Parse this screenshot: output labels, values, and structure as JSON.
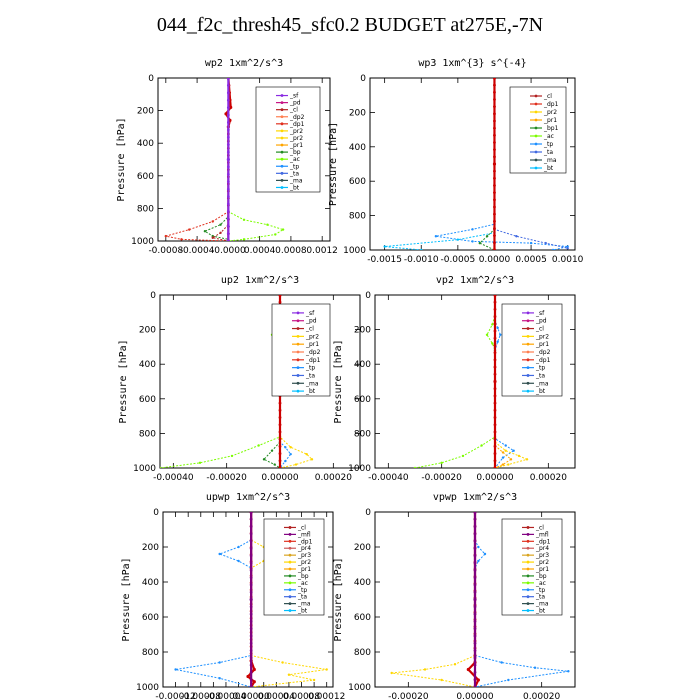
{
  "title": "044_f2c_thresh45_sfc0.2  BUDGET at275E,-7N",
  "colors": {
    "sf": "#8a2be2",
    "pd": "#c71585",
    "cl": "#b22222",
    "dp1": "#e0301e",
    "dp2": "#ff7f50",
    "pr1": "#ffa500",
    "pr2": "#ffd700",
    "pr3": "#daa520",
    "pr4": "#cd5c5c",
    "bp": "#228b22",
    "ac": "#7cfc00",
    "tp": "#1e90ff",
    "ta": "#4169e1",
    "ma": "#2f4f4f",
    "bt": "#00bfff",
    "mfl": "#800080",
    "main": "#cc0000",
    "axis": "#000000"
  },
  "chart_data": [
    {
      "type": "line",
      "title": "wp2  1xm^2/s^3",
      "ylabel": "Pressure [hPa]",
      "xlim": [
        -0.0009,
        0.0013
      ],
      "ylim": [
        1000,
        0
      ],
      "xticks": [
        -0.0008,
        -0.0004,
        0.0,
        0.0004,
        0.0008,
        0.0012
      ],
      "xtick_labels": [
        "-0.0008",
        "-0.0004",
        "-0.0000",
        "0.0004",
        "0.0008",
        "0.0012"
      ],
      "yticks": [
        0,
        200,
        400,
        600,
        800,
        1000
      ],
      "legend": [
        "_sf",
        "_pd",
        "_cl",
        "_dp2",
        "_dp1",
        "_pr2",
        "_pr2",
        "_pr1",
        "_bp",
        "_ac",
        "_tp",
        "_ta",
        "_ma",
        "_bt"
      ],
      "series": [
        {
          "color": "ac",
          "x": [
            0,
            0,
            0.0002,
            0.0005,
            0.0007,
            0.0006,
            0.0002,
            0
          ],
          "y": [
            0,
            820,
            870,
            900,
            930,
            960,
            990,
            1000
          ]
        },
        {
          "color": "bp",
          "x": [
            0,
            0,
            -0.0001,
            -0.0003,
            -0.0002,
            0,
            0
          ],
          "y": [
            0,
            850,
            900,
            940,
            970,
            990,
            1000
          ]
        },
        {
          "color": "dp1",
          "x": [
            0,
            0,
            -0.0002,
            -0.0005,
            -0.0008,
            -0.0006,
            0
          ],
          "y": [
            0,
            820,
            880,
            930,
            970,
            990,
            1000
          ]
        },
        {
          "color": "cl",
          "x": [
            0,
            0,
            -0.0001,
            -0.0002,
            0
          ],
          "y": [
            0,
            900,
            950,
            980,
            1000
          ]
        },
        {
          "color": "main",
          "x": [
            0,
            3e-05,
            -3e-05,
            2e-05,
            0,
            0
          ],
          "y": [
            0,
            180,
            220,
            260,
            300,
            1000
          ]
        },
        {
          "color": "sf",
          "x": [
            0,
            0,
            0
          ],
          "y": [
            0,
            500,
            1000
          ]
        }
      ]
    },
    {
      "type": "line",
      "title": "wp3  1xm^{3} s^{-4}",
      "ylabel": "Pressure [hPa]",
      "xlim": [
        -0.0017,
        0.0011
      ],
      "ylim": [
        1000,
        0
      ],
      "xticks": [
        -0.0015,
        -0.001,
        -0.0005,
        0.0,
        0.0005,
        0.001
      ],
      "xtick_labels": [
        "-0.0015",
        "-0.0010",
        "-0.0005",
        "0.0000",
        "0.0005",
        "0.0010"
      ],
      "yticks": [
        0,
        200,
        400,
        600,
        800,
        1000
      ],
      "legend": [
        "_cl",
        "_dp1",
        "_pr2",
        "_pr1",
        "_bp1",
        "_ac",
        "_tp",
        "_ta",
        "_ma",
        "_bt"
      ],
      "series": [
        {
          "color": "tp",
          "x": [
            0,
            0,
            -0.0003,
            -0.0008,
            -0.0003,
            0.0005,
            0.001,
            0.0008
          ],
          "y": [
            0,
            850,
            880,
            920,
            950,
            960,
            980,
            1000
          ]
        },
        {
          "color": "bt",
          "x": [
            0,
            0,
            -0.0005,
            -0.0015,
            -0.001
          ],
          "y": [
            0,
            900,
            940,
            980,
            1000
          ]
        },
        {
          "color": "ta",
          "x": [
            0,
            0,
            0.0003,
            0.0007,
            0.001
          ],
          "y": [
            0,
            880,
            920,
            960,
            990
          ]
        },
        {
          "color": "bp",
          "x": [
            0,
            0,
            -0.0001,
            -0.0002,
            0
          ],
          "y": [
            0,
            880,
            920,
            960,
            1000
          ]
        },
        {
          "color": "main",
          "x": [
            0,
            0,
            0
          ],
          "y": [
            0,
            500,
            1000
          ]
        }
      ]
    },
    {
      "type": "line",
      "title": "up2  1xm^2/s^3",
      "ylabel": "Pressure [hPa]",
      "xlim": [
        -0.00045,
        0.0003
      ],
      "ylim": [
        1000,
        0
      ],
      "xticks": [
        -0.0004,
        -0.0002,
        0.0,
        0.0002
      ],
      "xtick_labels": [
        "-0.00040",
        "-0.00020",
        "0.00000",
        "0.00020"
      ],
      "yticks": [
        0,
        200,
        400,
        600,
        800,
        1000
      ],
      "legend": [
        "_sf",
        "_pd",
        "_cl",
        "_pr2",
        "_pr1",
        "_dp2",
        "_dp1",
        "_tp",
        "_ta",
        "_ma",
        "_bt"
      ],
      "series": [
        {
          "color": "ac",
          "x": [
            0,
            0,
            -1e-05,
            -3e-05,
            -1e-05,
            0,
            0,
            -8e-05,
            -0.00018,
            -0.0003,
            -0.00045
          ],
          "y": [
            0,
            120,
            170,
            230,
            280,
            320,
            820,
            870,
            930,
            970,
            1000
          ]
        },
        {
          "color": "tp",
          "x": [
            0,
            0,
            1e-05,
            3e-05,
            1e-05,
            0,
            0,
            2e-05,
            4e-05,
            2e-05,
            0
          ],
          "y": [
            0,
            150,
            190,
            230,
            270,
            320,
            850,
            880,
            920,
            960,
            1000
          ]
        },
        {
          "color": "pr2",
          "x": [
            0,
            0,
            4e-05,
            0.0001,
            0.00012,
            6e-05,
            0
          ],
          "y": [
            0,
            820,
            880,
            920,
            950,
            980,
            1000
          ]
        },
        {
          "color": "bp",
          "x": [
            0,
            0,
            -3e-05,
            -6e-05,
            -2e-05,
            0
          ],
          "y": [
            0,
            850,
            900,
            950,
            980,
            1000
          ]
        },
        {
          "color": "main",
          "x": [
            0,
            0,
            0
          ],
          "y": [
            0,
            500,
            1000
          ]
        }
      ]
    },
    {
      "type": "line",
      "title": "vp2  1xm^2/s^3",
      "ylabel": "Pressure [hPa]",
      "xlim": [
        -0.00045,
        0.0003
      ],
      "ylim": [
        1000,
        0
      ],
      "xticks": [
        -0.0004,
        -0.0002,
        0.0,
        0.0002
      ],
      "xtick_labels": [
        "-0.00040",
        "-0.00020",
        "0.00000",
        "0.00020"
      ],
      "yticks": [
        0,
        200,
        400,
        600,
        800,
        1000
      ],
      "legend": [
        "_sf",
        "_pd",
        "_cl",
        "_pr2",
        "_pr1",
        "_dp2",
        "_dp1",
        "_tp",
        "_ta",
        "_ma",
        "_bt"
      ],
      "series": [
        {
          "color": "ac",
          "x": [
            0,
            0,
            -1e-05,
            -3e-05,
            -1e-05,
            0,
            0,
            -5e-05,
            -0.00012,
            -0.0002,
            -0.0003
          ],
          "y": [
            0,
            120,
            170,
            230,
            280,
            320,
            820,
            870,
            930,
            970,
            1000
          ]
        },
        {
          "color": "tp",
          "x": [
            0,
            0,
            1e-05,
            2e-05,
            1e-05,
            0,
            0,
            4e-05,
            7e-05,
            3e-05,
            0
          ],
          "y": [
            0,
            150,
            190,
            230,
            270,
            320,
            830,
            870,
            900,
            940,
            1000
          ]
        },
        {
          "color": "pr2",
          "x": [
            0,
            0,
            4e-05,
            9e-05,
            0.00012,
            5e-05,
            0
          ],
          "y": [
            0,
            850,
            900,
            930,
            950,
            980,
            1000
          ]
        },
        {
          "color": "pr1",
          "x": [
            0,
            0,
            3e-05,
            6e-05,
            3e-05,
            0
          ],
          "y": [
            0,
            870,
            910,
            950,
            980,
            1000
          ]
        },
        {
          "color": "main",
          "x": [
            0,
            0,
            0
          ],
          "y": [
            0,
            500,
            1000
          ]
        }
      ]
    },
    {
      "type": "line",
      "title": "upwp  1xm^2/s^3",
      "ylabel": "Pressure [hPa]",
      "xlim": [
        -0.00014,
        0.00013
      ],
      "ylim": [
        1000,
        0
      ],
      "xticks": [
        -0.00012,
        -0.0001,
        -8e-05,
        -6e-05,
        -4e-05,
        -2e-05,
        0.0,
        2e-05,
        4e-05,
        6e-05,
        8e-05,
        0.0001,
        0.00012
      ],
      "xtick_labels": [
        "-0.00012",
        "",
        "-0.00008",
        "",
        "-0.00004",
        "",
        "0.00000",
        "",
        "0.00004",
        "",
        "0.00008",
        "",
        "0.00012"
      ],
      "yticks": [
        0,
        200,
        400,
        600,
        800,
        1000
      ],
      "legend": [
        "_cl",
        "_mfl",
        "_dp1",
        "_pr4",
        "_pr3",
        "_pr2",
        "_pr1",
        "_bp",
        "_ac",
        "_tp",
        "_ta",
        "_ma",
        "_bt"
      ],
      "series": [
        {
          "color": "tp",
          "x": [
            0,
            0,
            -2e-05,
            -5e-05,
            -2e-05,
            0,
            0,
            -5e-05,
            -0.00012,
            -5e-05,
            0
          ],
          "y": [
            0,
            160,
            200,
            240,
            280,
            320,
            820,
            860,
            900,
            950,
            1000
          ]
        },
        {
          "color": "pr2",
          "x": [
            0,
            0,
            2e-05,
            6e-05,
            2e-05,
            0,
            0,
            5e-05,
            0.00012,
            6e-05,
            0.0001,
            0
          ],
          "y": [
            0,
            160,
            200,
            240,
            280,
            320,
            820,
            860,
            900,
            930,
            960,
            1000
          ]
        },
        {
          "color": "main",
          "x": [
            0,
            0,
            5e-06,
            -5e-06,
            5e-06,
            0
          ],
          "y": [
            0,
            850,
            900,
            940,
            970,
            1000
          ]
        },
        {
          "color": "mfl",
          "x": [
            0,
            0,
            0
          ],
          "y": [
            0,
            500,
            1000
          ]
        }
      ]
    },
    {
      "type": "line",
      "title": "vpwp  1xm^2/s^3",
      "ylabel": "Pressure [hPa]",
      "xlim": [
        -0.0003,
        0.0003
      ],
      "ylim": [
        1000,
        0
      ],
      "xticks": [
        -0.0002,
        0.0,
        0.0002
      ],
      "xtick_labels": [
        "-0.00020",
        "0.00000",
        "0.00020"
      ],
      "yticks": [
        0,
        200,
        400,
        600,
        800,
        1000
      ],
      "legend": [
        "_cl",
        "_mfl",
        "_dp1",
        "_pr4",
        "_pr3",
        "_pr2",
        "_pr1",
        "_bp",
        "_ac",
        "_tp",
        "_ta",
        "_ma",
        "_bt"
      ],
      "series": [
        {
          "color": "tp",
          "x": [
            0,
            0,
            1e-05,
            3e-05,
            1e-05,
            0,
            0,
            8e-05,
            0.00018,
            0.00028,
            0.0001,
            0
          ],
          "y": [
            0,
            160,
            200,
            240,
            280,
            320,
            820,
            860,
            890,
            910,
            960,
            1000
          ]
        },
        {
          "color": "pr2",
          "x": [
            0,
            0,
            0,
            -6e-05,
            -0.00015,
            -0.00025,
            -0.0001,
            0
          ],
          "y": [
            0,
            300,
            820,
            870,
            900,
            920,
            960,
            1000
          ]
        },
        {
          "color": "main",
          "x": [
            0,
            0,
            -2e-05,
            1e-05,
            0
          ],
          "y": [
            0,
            860,
            900,
            960,
            1000
          ]
        },
        {
          "color": "mfl",
          "x": [
            0,
            0,
            0
          ],
          "y": [
            0,
            500,
            1000
          ]
        }
      ]
    }
  ]
}
